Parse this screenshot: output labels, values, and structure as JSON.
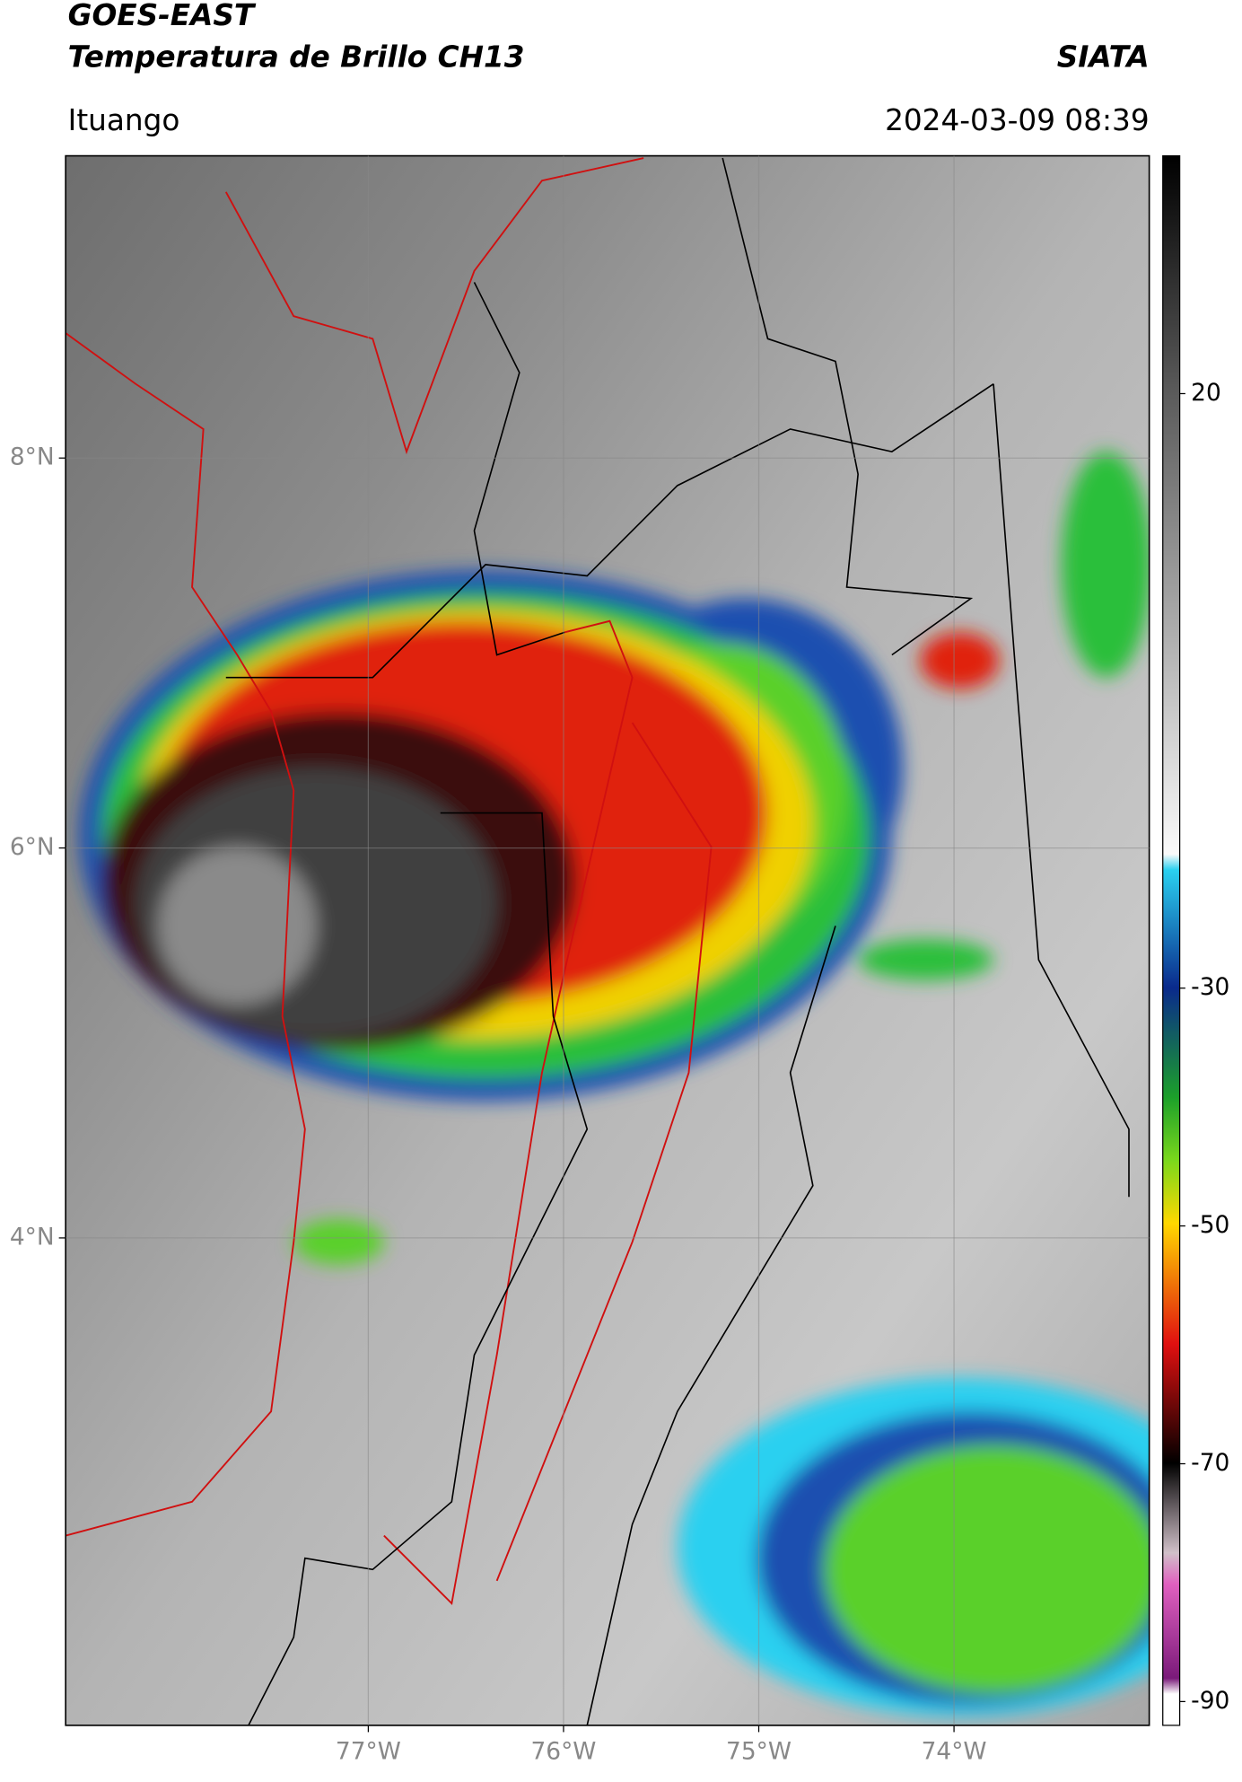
{
  "header": {
    "title": "GOES-EAST",
    "subtitle": "Temperatura de Brillo CH13",
    "source": "SIATA",
    "location": "Ituango",
    "datetime": "2024-03-09 08:39"
  },
  "map": {
    "xlim": [
      -78.55,
      -73.0
    ],
    "ylim": [
      1.5,
      9.55
    ],
    "xticks": [
      {
        "value": -77,
        "label": "77°W"
      },
      {
        "value": -76,
        "label": "76°W"
      },
      {
        "value": -75,
        "label": "75°W"
      },
      {
        "value": -74,
        "label": "74°W"
      }
    ],
    "yticks": [
      {
        "value": 8,
        "label": "8°N"
      },
      {
        "value": 6,
        "label": "6°N"
      },
      {
        "value": 4,
        "label": "4°N"
      }
    ]
  },
  "colorbar": {
    "lim": [
      -92,
      40
    ],
    "ticks": [
      20,
      -30,
      -50,
      -70,
      -90
    ]
  }
}
